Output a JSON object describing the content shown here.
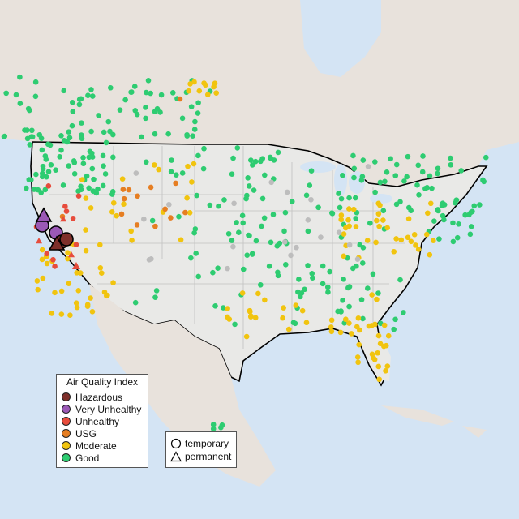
{
  "legend": {
    "title": "Air Quality Index",
    "categories": [
      {
        "label": "Hazardous",
        "color": "#7e2f2a"
      },
      {
        "label": "Very Unhealthy",
        "color": "#9b59b6"
      },
      {
        "label": "Unhealthy",
        "color": "#e74c3c"
      },
      {
        "label": "USG",
        "color": "#e67e22"
      },
      {
        "label": "Moderate",
        "color": "#f1c40f"
      },
      {
        "label": "Good",
        "color": "#2ecc71"
      }
    ],
    "no_data_color": "#bdbdbd"
  },
  "type_legend": {
    "items": [
      {
        "label": "temporary",
        "shape": "circle"
      },
      {
        "label": "permanent",
        "shape": "triangle"
      }
    ]
  },
  "map_colors": {
    "water": "#d4e4f4",
    "land": "#ebe8e2",
    "us_land": "#e9e9e7",
    "state_lines": "#bfbfbf",
    "border": "#000000"
  }
}
